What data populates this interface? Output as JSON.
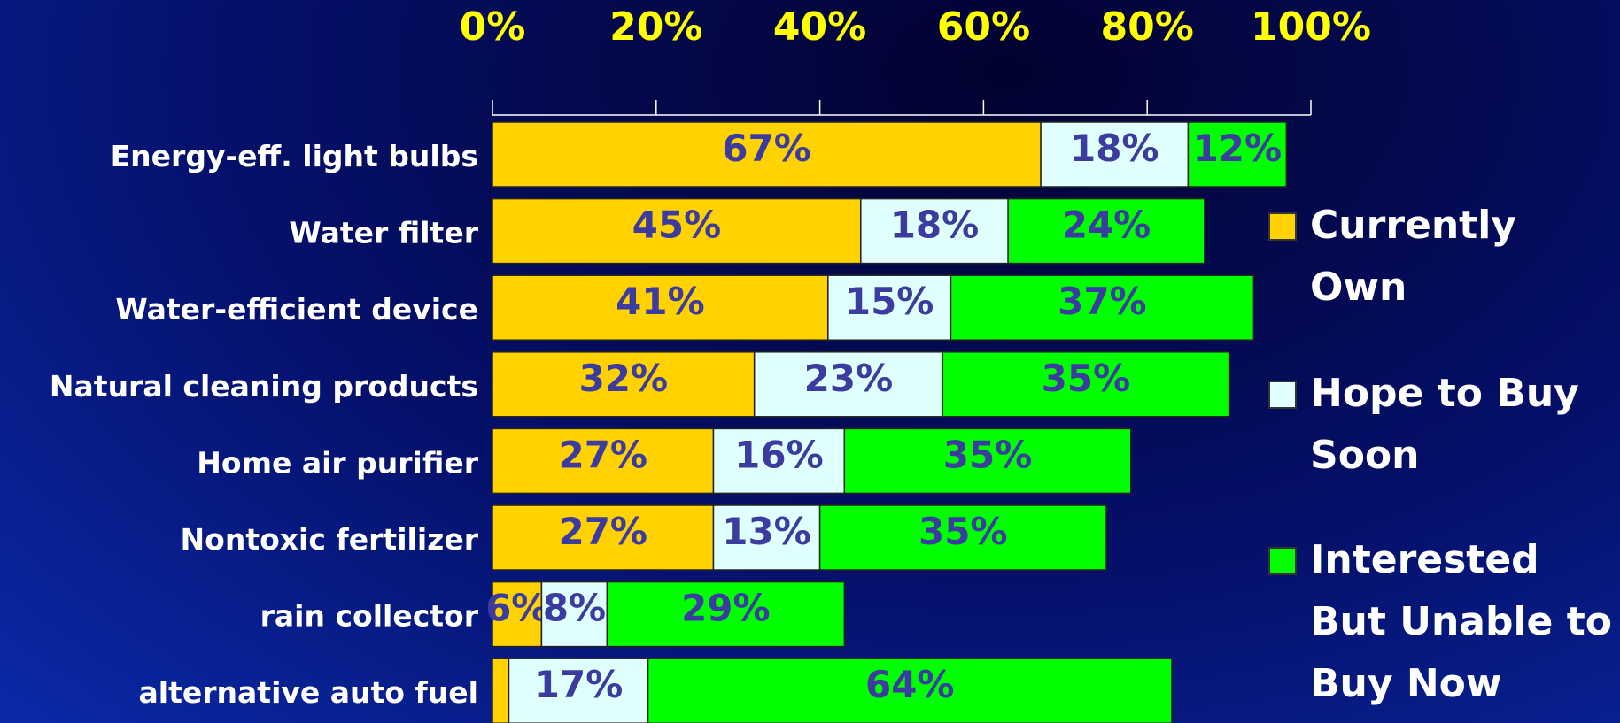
{
  "chart_data": {
    "type": "stacked-barh",
    "categories": [
      "Energy-eff. light bulbs",
      "Water filter",
      "Water-efficient device",
      "Natural cleaning products",
      "Home air purifier",
      "Nontoxic fertilizer",
      "rain collector",
      "alternative auto fuel"
    ],
    "series": [
      {
        "name": "Currently Own",
        "color": "#ffd200",
        "values": [
          67,
          45,
          41,
          32,
          27,
          27,
          6,
          2
        ],
        "value_labels": [
          "67%",
          "45%",
          "41%",
          "32%",
          "27%",
          "27%",
          "6%",
          null
        ]
      },
      {
        "name": "Hope to Buy Soon",
        "color": "#e0ffff",
        "values": [
          18,
          18,
          15,
          23,
          16,
          13,
          8,
          17
        ],
        "value_labels": [
          "18%",
          "18%",
          "15%",
          "23%",
          "16%",
          "13%",
          "8%",
          "17%"
        ]
      },
      {
        "name": "Interested But Unable to Buy Now",
        "color": "#00ff00",
        "values": [
          12,
          24,
          37,
          35,
          35,
          35,
          29,
          64
        ],
        "value_labels": [
          "12%",
          "24%",
          "37%",
          "35%",
          "35%",
          "35%",
          "29%",
          "64%"
        ]
      }
    ],
    "xlim": [
      0,
      100
    ],
    "xticks": [
      {
        "value": 0,
        "label": "0%"
      },
      {
        "value": 20,
        "label": "20%"
      },
      {
        "value": 40,
        "label": "40%"
      },
      {
        "value": 60,
        "label": "60%"
      },
      {
        "value": 80,
        "label": "80%"
      },
      {
        "value": 100,
        "label": "100%"
      }
    ],
    "legend": "right"
  }
}
